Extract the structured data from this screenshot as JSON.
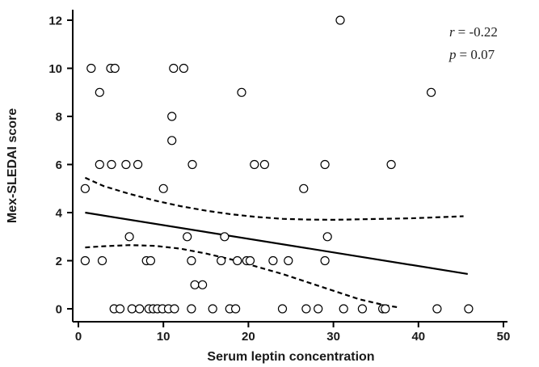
{
  "chart_data": {
    "type": "scatter",
    "xlabel": "Serum leptin concentration",
    "ylabel": "Mex-SLEDAI score",
    "xlim": [
      0,
      50
    ],
    "ylim": [
      0,
      12
    ],
    "x_ticks": [
      "0",
      "10",
      "20",
      "30",
      "40",
      "50"
    ],
    "y_ticks": [
      "0",
      "2",
      "4",
      "6",
      "8",
      "10",
      "12"
    ],
    "grid": false,
    "annotations": {
      "r_label": "r",
      "r_value": "= -0.22",
      "p_label": "p",
      "p_value": "= 0.07"
    },
    "points": [
      {
        "x": 0.8,
        "y": 5
      },
      {
        "x": 0.8,
        "y": 2
      },
      {
        "x": 1.5,
        "y": 10
      },
      {
        "x": 2.5,
        "y": 9
      },
      {
        "x": 2.5,
        "y": 6
      },
      {
        "x": 2.8,
        "y": 2
      },
      {
        "x": 3.8,
        "y": 10
      },
      {
        "x": 4.3,
        "y": 10
      },
      {
        "x": 3.9,
        "y": 6
      },
      {
        "x": 4.2,
        "y": 0
      },
      {
        "x": 4.9,
        "y": 0
      },
      {
        "x": 5.6,
        "y": 6
      },
      {
        "x": 6.0,
        "y": 3
      },
      {
        "x": 6.3,
        "y": 0
      },
      {
        "x": 7.0,
        "y": 6
      },
      {
        "x": 7.2,
        "y": 0
      },
      {
        "x": 8.0,
        "y": 2
      },
      {
        "x": 8.5,
        "y": 2
      },
      {
        "x": 8.3,
        "y": 0
      },
      {
        "x": 8.8,
        "y": 0
      },
      {
        "x": 9.3,
        "y": 0
      },
      {
        "x": 9.9,
        "y": 0
      },
      {
        "x": 10.0,
        "y": 5
      },
      {
        "x": 10.6,
        "y": 0
      },
      {
        "x": 11.0,
        "y": 8
      },
      {
        "x": 11.0,
        "y": 7
      },
      {
        "x": 11.2,
        "y": 10
      },
      {
        "x": 12.4,
        "y": 10
      },
      {
        "x": 11.3,
        "y": 0
      },
      {
        "x": 12.8,
        "y": 3
      },
      {
        "x": 13.4,
        "y": 6
      },
      {
        "x": 13.3,
        "y": 2
      },
      {
        "x": 13.3,
        "y": 0
      },
      {
        "x": 13.7,
        "y": 1
      },
      {
        "x": 14.6,
        "y": 1
      },
      {
        "x": 15.8,
        "y": 0
      },
      {
        "x": 16.8,
        "y": 2
      },
      {
        "x": 17.2,
        "y": 3
      },
      {
        "x": 17.8,
        "y": 0
      },
      {
        "x": 18.5,
        "y": 0
      },
      {
        "x": 18.7,
        "y": 2
      },
      {
        "x": 19.2,
        "y": 9
      },
      {
        "x": 19.8,
        "y": 2
      },
      {
        "x": 20.2,
        "y": 2
      },
      {
        "x": 20.7,
        "y": 6
      },
      {
        "x": 21.9,
        "y": 6
      },
      {
        "x": 22.9,
        "y": 2
      },
      {
        "x": 24.0,
        "y": 0
      },
      {
        "x": 24.7,
        "y": 2
      },
      {
        "x": 26.5,
        "y": 5
      },
      {
        "x": 26.8,
        "y": 0
      },
      {
        "x": 28.2,
        "y": 0
      },
      {
        "x": 29.0,
        "y": 6
      },
      {
        "x": 29.0,
        "y": 2
      },
      {
        "x": 29.3,
        "y": 3
      },
      {
        "x": 30.8,
        "y": 12
      },
      {
        "x": 31.2,
        "y": 0
      },
      {
        "x": 33.4,
        "y": 0
      },
      {
        "x": 35.8,
        "y": 0
      },
      {
        "x": 36.1,
        "y": 0
      },
      {
        "x": 36.8,
        "y": 6
      },
      {
        "x": 41.5,
        "y": 9
      },
      {
        "x": 42.2,
        "y": 0
      },
      {
        "x": 45.9,
        "y": 0
      }
    ],
    "regression_line": {
      "x": [
        0.8,
        45.8
      ],
      "y": [
        4.0,
        1.45
      ]
    },
    "ci_upper": {
      "x": [
        0.8,
        3,
        6,
        9,
        12,
        15,
        18,
        21,
        24,
        27,
        30,
        33,
        36,
        39,
        42,
        45.3
      ],
      "y": [
        5.45,
        5.1,
        4.78,
        4.5,
        4.27,
        4.08,
        3.93,
        3.82,
        3.74,
        3.71,
        3.7,
        3.72,
        3.74,
        3.76,
        3.8,
        3.85
      ]
    },
    "ci_lower": {
      "x": [
        0.8,
        3,
        6,
        9,
        12,
        15,
        18,
        21,
        24,
        27,
        30,
        33,
        36,
        37.8
      ],
      "y": [
        2.55,
        2.6,
        2.65,
        2.62,
        2.5,
        2.3,
        2.05,
        1.75,
        1.45,
        1.1,
        0.75,
        0.4,
        0.15,
        0.05
      ]
    }
  }
}
